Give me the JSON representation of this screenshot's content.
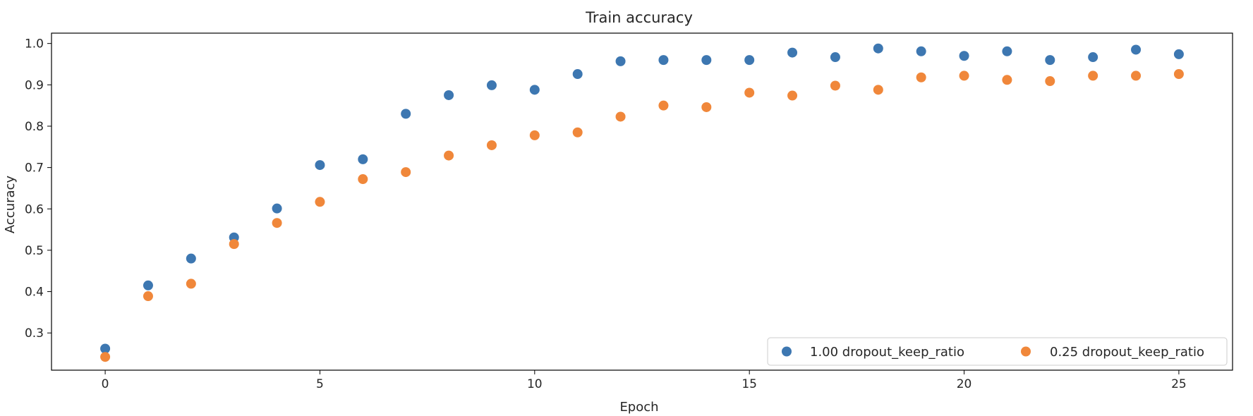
{
  "chart_data": {
    "type": "scatter",
    "title": "Train accuracy",
    "xlabel": "Epoch",
    "ylabel": "Accuracy",
    "xlim": [
      -1.25,
      26.25
    ],
    "ylim": [
      0.21,
      1.025
    ],
    "xticks": [
      0,
      5,
      10,
      15,
      20,
      25
    ],
    "xtick_labels": [
      "0",
      "5",
      "10",
      "15",
      "20",
      "25"
    ],
    "yticks": [
      0.3,
      0.4,
      0.5,
      0.6,
      0.7,
      0.8,
      0.9,
      1.0
    ],
    "ytick_labels": [
      "0.3",
      "0.4",
      "0.5",
      "0.6",
      "0.7",
      "0.8",
      "0.9",
      "1.0"
    ],
    "grid": false,
    "legend_position": "lower-right",
    "legend_columns": 2,
    "x": [
      0,
      1,
      2,
      3,
      4,
      5,
      6,
      7,
      8,
      9,
      10,
      11,
      12,
      13,
      14,
      15,
      16,
      17,
      18,
      19,
      20,
      21,
      22,
      23,
      24,
      25
    ],
    "series": [
      {
        "name": "1.00 dropout_keep_ratio",
        "color": "#3d77b1",
        "values": [
          0.262,
          0.415,
          0.48,
          0.531,
          0.601,
          0.706,
          0.72,
          0.83,
          0.875,
          0.899,
          0.888,
          0.926,
          0.957,
          0.96,
          0.96,
          0.96,
          0.978,
          0.967,
          0.988,
          0.981,
          0.97,
          0.981,
          0.96,
          0.967,
          0.985,
          0.974
        ]
      },
      {
        "name": "0.25 dropout_keep_ratio",
        "color": "#f0873a",
        "values": [
          0.242,
          0.389,
          0.419,
          0.515,
          0.566,
          0.617,
          0.672,
          0.689,
          0.729,
          0.754,
          0.778,
          0.785,
          0.823,
          0.85,
          0.846,
          0.881,
          0.874,
          0.898,
          0.888,
          0.918,
          0.922,
          0.912,
          0.909,
          0.922,
          0.922,
          0.926
        ]
      }
    ]
  }
}
